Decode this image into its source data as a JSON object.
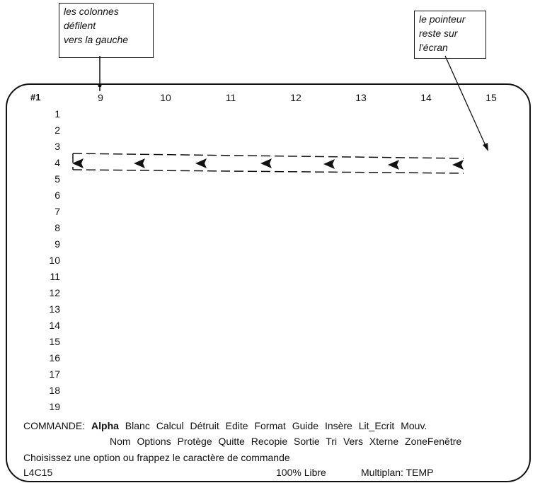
{
  "callouts": {
    "left": [
      "les colonnes",
      "défilent",
      "vers la gauche"
    ],
    "right": [
      "le pointeur",
      "reste sur",
      "l'écran"
    ]
  },
  "grid": {
    "corner": "#1",
    "columns": [
      "9",
      "10",
      "11",
      "12",
      "13",
      "14",
      "15"
    ],
    "rows": [
      "1",
      "2",
      "3",
      "4",
      "5",
      "6",
      "7",
      "8",
      "9",
      "10",
      "11",
      "12",
      "13",
      "14",
      "15",
      "16",
      "17",
      "18",
      "19"
    ]
  },
  "command": {
    "prefix": "COMMANDE:",
    "line1": [
      "Alpha",
      "Blanc",
      "Calcul",
      "Détruit",
      "Edite",
      "Format",
      "Guide",
      "Insère",
      "Lit_Ecrit",
      "Mouv."
    ],
    "line2": [
      "Nom",
      "Options",
      "Protège",
      "Quitte",
      "Recopie",
      "Sortie",
      "Tri",
      "Vers",
      "Xterne",
      "ZoneFenêtre"
    ],
    "prompt": "Choisissez une option ou frappez le caractère de commande"
  },
  "status": {
    "cell": "L4C15",
    "free": "100% Libre",
    "file": "Multiplan: TEMP"
  },
  "icons": {
    "pointer": "arrow-pointer-icon"
  }
}
